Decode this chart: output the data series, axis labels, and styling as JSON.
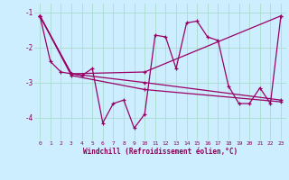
{
  "xlabel": "Windchill (Refroidissement éolien,°C)",
  "background_color": "#cceeff",
  "line_color": "#990066",
  "grid_color": "#aaddcc",
  "xlim": [
    -0.5,
    23.5
  ],
  "ylim": [
    -4.65,
    -0.75
  ],
  "yticks": [
    -4,
    -3,
    -2,
    -1
  ],
  "xticks": [
    0,
    1,
    2,
    3,
    4,
    5,
    6,
    7,
    8,
    9,
    10,
    11,
    12,
    13,
    14,
    15,
    16,
    17,
    18,
    19,
    20,
    21,
    22,
    23
  ],
  "lines": [
    [
      0,
      -1.1,
      1,
      -2.4,
      2,
      -2.7,
      3,
      -2.75,
      4,
      -2.8,
      5,
      -2.6,
      6,
      -4.15,
      7,
      -3.6,
      8,
      -3.5,
      9,
      -4.3,
      10,
      -3.9,
      11,
      -1.65,
      12,
      -1.7,
      13,
      -2.6,
      14,
      -1.3,
      15,
      -1.25,
      16,
      -1.7,
      17,
      -1.8,
      18,
      -3.1,
      19,
      -3.6,
      20,
      -3.6,
      21,
      -3.15,
      22,
      -3.6,
      23,
      -1.1
    ],
    [
      0,
      -1.1,
      3,
      -2.75,
      10,
      -2.7,
      23,
      -1.1
    ],
    [
      0,
      -1.1,
      3,
      -2.75,
      10,
      -3.0,
      23,
      -3.5
    ],
    [
      0,
      -1.1,
      3,
      -2.8,
      10,
      -3.2,
      23,
      -3.55
    ]
  ]
}
